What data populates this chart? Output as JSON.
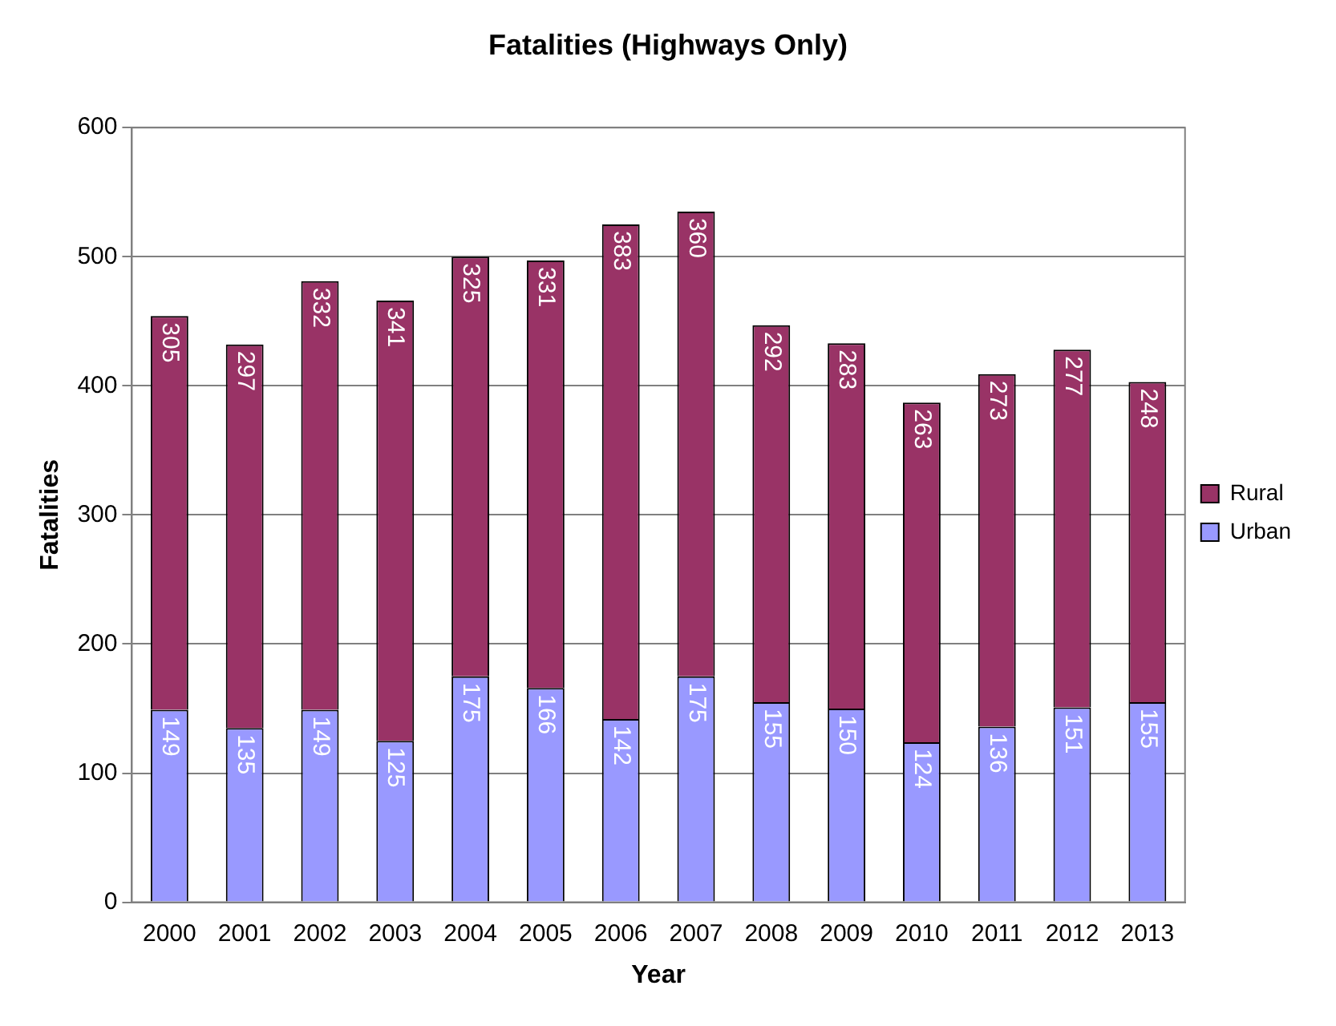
{
  "chart_data": {
    "type": "bar",
    "title": "Fatalities (Highways Only)",
    "xlabel": "Year",
    "ylabel": "Fatalities",
    "categories": [
      "2000",
      "2001",
      "2002",
      "2003",
      "2004",
      "2005",
      "2006",
      "2007",
      "2008",
      "2009",
      "2010",
      "2011",
      "2012",
      "2013"
    ],
    "stacked": true,
    "ylim": [
      0,
      600
    ],
    "yticks": [
      0,
      100,
      200,
      300,
      400,
      500,
      600
    ],
    "grid": "y",
    "legend": "right",
    "data_labels": true,
    "series": [
      {
        "name": "Urban",
        "color": "#9999ff",
        "values": [
          149,
          135,
          149,
          125,
          175,
          166,
          142,
          175,
          155,
          150,
          124,
          136,
          151,
          155
        ]
      },
      {
        "name": "Rural",
        "color": "#993366",
        "values": [
          305,
          297,
          332,
          341,
          325,
          331,
          383,
          360,
          292,
          283,
          263,
          273,
          277,
          248
        ]
      }
    ]
  }
}
